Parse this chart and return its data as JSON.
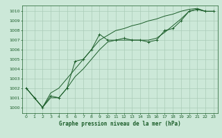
{
  "xlabel": "Graphe pression niveau de la mer (hPa)",
  "bg_color": "#cce8d8",
  "grid_color": "#aaccb8",
  "line_color": "#1a5c28",
  "xlim": [
    -0.5,
    23.5
  ],
  "ylim": [
    999.4,
    1010.6
  ],
  "xticks": [
    0,
    1,
    2,
    3,
    4,
    5,
    6,
    7,
    8,
    9,
    10,
    11,
    12,
    13,
    14,
    15,
    16,
    17,
    18,
    19,
    20,
    21,
    22,
    23
  ],
  "yticks": [
    1000,
    1001,
    1002,
    1003,
    1004,
    1005,
    1006,
    1007,
    1008,
    1009,
    1010
  ],
  "series1_x": [
    0,
    1,
    2,
    3,
    4,
    5,
    6,
    7,
    8,
    9,
    10,
    11,
    12,
    13,
    14,
    15,
    16,
    17,
    18,
    19,
    20,
    21,
    22,
    23
  ],
  "series1_y": [
    1002,
    1001,
    1000,
    1001.2,
    1001,
    1002,
    1004.8,
    1005,
    1006,
    1007.6,
    1007,
    1007,
    1007.2,
    1007,
    1007,
    1006.8,
    1007,
    1008,
    1008.2,
    1009,
    1010,
    1010.2,
    1010,
    1010
  ],
  "series2_x": [
    0,
    1,
    2,
    3,
    4,
    5,
    6,
    7,
    8,
    9,
    10,
    11,
    12,
    13,
    14,
    15,
    16,
    17,
    18,
    19,
    20,
    21,
    22,
    23
  ],
  "series2_y": [
    1002,
    1001,
    1000,
    1001,
    1001,
    1002,
    1003.2,
    1004,
    1005,
    1006,
    1006.8,
    1007,
    1007,
    1007,
    1007,
    1007,
    1007.2,
    1007.8,
    1008.5,
    1009.2,
    1010,
    1010.2,
    1010,
    1010
  ],
  "series3_x": [
    0,
    1,
    2,
    3,
    4,
    5,
    6,
    7,
    8,
    9,
    10,
    11,
    12,
    13,
    14,
    15,
    16,
    17,
    18,
    19,
    20,
    21,
    22,
    23
  ],
  "series3_y": [
    1002,
    1001,
    1000,
    1001.5,
    1002,
    1003,
    1004,
    1005,
    1006,
    1007,
    1007.5,
    1008,
    1008.2,
    1008.5,
    1008.7,
    1009,
    1009.2,
    1009.5,
    1009.7,
    1010,
    1010.2,
    1010.3,
    1010,
    1010
  ],
  "tick_fontsize": 4.5,
  "xlabel_fontsize": 5.5
}
